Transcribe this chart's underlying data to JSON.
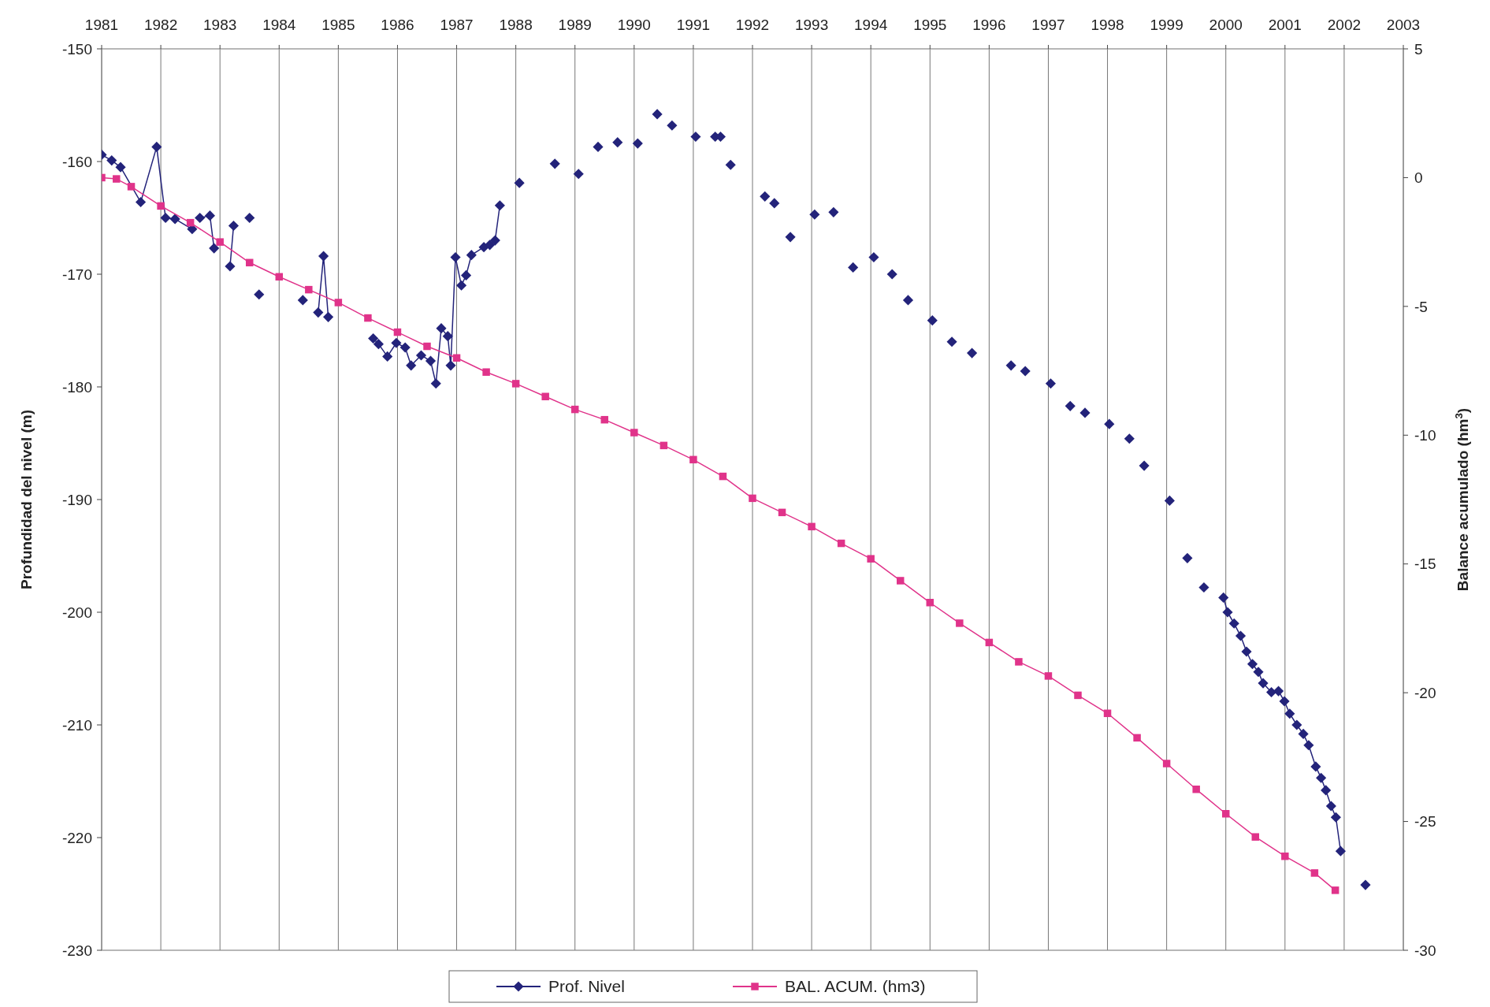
{
  "chart_data": {
    "type": "line",
    "xlabel": null,
    "ylabel": "Profundidad del nivel (m)",
    "y2label": "Balance acumulado (hm$^{3}$)",
    "xlim": [
      1981,
      2003
    ],
    "xticks": [
      1981,
      1982,
      1983,
      1984,
      1985,
      1986,
      1987,
      1988,
      1989,
      1990,
      1991,
      1992,
      1993,
      1994,
      1995,
      1996,
      1997,
      1998,
      1999,
      2000,
      2001,
      2002,
      2003
    ],
    "ylim": [
      -230,
      -150
    ],
    "yticks": [
      -230,
      -220,
      -210,
      -200,
      -190,
      -180,
      -170,
      -160,
      -150
    ],
    "y2lim": [
      -30,
      5
    ],
    "y2ticks": [
      -30,
      -25,
      -20,
      -15,
      -10,
      -5,
      0,
      5
    ],
    "grid": "x",
    "legend": "bottom",
    "line_style": "solid",
    "series": [
      {
        "name": "Prof. Nivel",
        "color": "#23237a",
        "marker": "diamond",
        "x": [
          1981.0,
          1981.17,
          1981.32,
          1981.66,
          1981.93,
          1982.08,
          1982.24,
          1982.53,
          1982.6,
          1982.66,
          1982.83,
          1982.9,
          1983.0,
          1983.17,
          1983.23,
          1983.4,
          1983.5,
          1983.58,
          1983.66,
          1984.0,
          1984.4,
          1984.5,
          1984.66,
          1984.75,
          1984.83,
          1985.2,
          1985.59,
          1985.68,
          1985.83,
          1985.98,
          1986.13,
          1986.23,
          1986.4,
          1986.56,
          1986.65,
          1986.74,
          1986.85,
          1986.9,
          1986.98,
          1987.08,
          1987.16,
          1987.25,
          1987.46,
          1987.56,
          1987.65,
          1987.73,
          1987.9,
          1988.06,
          1988.3,
          1988.66,
          1988.9,
          1989.06,
          1989.2,
          1989.39,
          1989.5,
          1989.72,
          1989.9,
          1990.06,
          1990.2,
          1990.39,
          1990.5,
          1990.64,
          1990.8,
          1991.04,
          1991.2,
          1991.37,
          1991.42,
          1991.46,
          1991.55,
          1991.63,
          1991.9,
          1992.21,
          1992.3,
          1992.37,
          1992.5,
          1992.64,
          1992.8,
          1993.05,
          1993.2,
          1993.37,
          1993.5,
          1993.7,
          1993.9,
          1994.05,
          1994.2,
          1994.36,
          1994.5,
          1994.63,
          1994.8,
          1995.04,
          1995.2,
          1995.37,
          1995.5,
          1995.71,
          1996.0,
          1996.37,
          1996.5,
          1996.61,
          1996.8,
          1997.04,
          1997.2,
          1997.37,
          1997.5,
          1997.62,
          1997.8,
          1998.03,
          1998.2,
          1998.37,
          1998.5,
          1998.62,
          1998.8,
          1999.05,
          1999.2,
          1999.35,
          1999.5,
          1999.63,
          1999.8,
          1999.96,
          2000.03,
          2000.14,
          2000.25,
          2000.35,
          2000.45,
          2000.55,
          2000.63,
          2000.77,
          2000.89,
          2000.99,
          2001.08,
          2001.2,
          2001.31,
          2001.4,
          2001.52,
          2001.61,
          2001.69,
          2001.78,
          2001.86,
          2001.94,
          2002.1,
          2002.36
        ],
        "values": [
          -159.4,
          -159.9,
          -160.5,
          -163.6,
          -158.7,
          -165.0,
          -165.1,
          -166.0,
          null,
          -165.0,
          -164.8,
          -167.7,
          null,
          -169.3,
          -165.7,
          null,
          -165.0,
          null,
          -171.8,
          null,
          -172.3,
          null,
          -173.4,
          -168.4,
          -173.8,
          null,
          -175.7,
          -176.2,
          -177.3,
          -176.1,
          -176.5,
          -178.1,
          -177.2,
          -177.7,
          -179.7,
          -174.8,
          -175.5,
          -178.1,
          -168.5,
          -171.0,
          -170.1,
          -168.3,
          -167.6,
          -167.4,
          -167.0,
          -163.9,
          null,
          -161.9,
          null,
          -160.2,
          null,
          -161.1,
          null,
          -158.7,
          null,
          -158.3,
          null,
          -158.4,
          null,
          -155.8,
          null,
          -156.8,
          null,
          -157.8,
          null,
          -157.8,
          null,
          -157.8,
          null,
          -160.3,
          null,
          -163.1,
          null,
          -163.7,
          null,
          -166.7,
          null,
          -164.7,
          null,
          -164.5,
          null,
          -169.4,
          null,
          -168.5,
          null,
          -170.0,
          null,
          -172.3,
          null,
          -174.1,
          null,
          -176.0,
          null,
          -177.0,
          null,
          -178.1,
          null,
          -178.6,
          null,
          -179.7,
          null,
          -181.7,
          null,
          -182.3,
          null,
          -183.3,
          null,
          -184.6,
          null,
          -187.0,
          null,
          -190.1,
          null,
          -195.2,
          null,
          -197.8,
          null,
          -198.7,
          -200.0,
          -201.0,
          -202.1,
          -203.5,
          -204.6,
          -205.3,
          -206.3,
          -207.1,
          -207.0,
          -207.9,
          -209.0,
          -210.0,
          -210.8,
          -211.8,
          -213.7,
          -214.7,
          -215.8,
          -217.2,
          -218.2,
          -221.2,
          null,
          -224.2
        ]
      },
      {
        "name": "BAL. ACUM. (hm3)",
        "color": "#e0338a",
        "marker": "square",
        "axis": "y2",
        "x": [
          1981.0,
          1981.25,
          1981.5,
          1982.0,
          1982.5,
          1983.0,
          1983.5,
          1984.0,
          1984.5,
          1985.0,
          1985.5,
          1986.0,
          1986.5,
          1987.0,
          1987.5,
          1988.0,
          1988.5,
          1989.0,
          1989.5,
          1990.0,
          1990.5,
          1991.0,
          1991.5,
          1992.0,
          1992.5,
          1993.0,
          1993.5,
          1994.0,
          1994.5,
          1995.0,
          1995.5,
          1996.0,
          1996.5,
          1997.0,
          1997.5,
          1998.0,
          1998.5,
          1999.0,
          1999.5,
          2000.0,
          2000.5,
          2001.0,
          2001.5,
          2001.85
        ],
        "values": [
          0.0,
          -0.05,
          -0.35,
          -1.1,
          -1.75,
          -2.5,
          -3.3,
          -3.85,
          -4.35,
          -4.85,
          -5.45,
          -6.0,
          -6.55,
          -7.0,
          -7.55,
          -8.0,
          -8.5,
          -9.0,
          -9.4,
          -9.9,
          -10.4,
          -10.95,
          -11.6,
          -12.45,
          -13.0,
          -13.55,
          -14.2,
          -14.8,
          -15.65,
          -16.5,
          -17.3,
          -18.05,
          -18.8,
          -19.35,
          -20.1,
          -20.8,
          -21.75,
          -22.75,
          -23.75,
          -24.7,
          -25.6,
          -26.35,
          -27.0,
          -27.67
        ]
      }
    ]
  }
}
